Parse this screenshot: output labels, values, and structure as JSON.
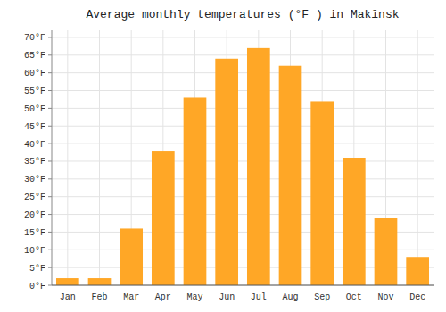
{
  "chart_data": {
    "type": "bar",
    "title": "Average monthly temperatures (°F ) in Makīnsk",
    "categories": [
      "Jan",
      "Feb",
      "Mar",
      "Apr",
      "May",
      "Jun",
      "Jul",
      "Aug",
      "Sep",
      "Oct",
      "Nov",
      "Dec"
    ],
    "values": [
      2,
      2,
      16,
      38,
      53,
      64,
      67,
      62,
      52,
      36,
      19,
      8
    ],
    "color": "#FFA726",
    "ylim": [
      0,
      72
    ],
    "yticks": [
      {
        "value": 0,
        "label": "0°F"
      },
      {
        "value": 5,
        "label": "5°F"
      },
      {
        "value": 10,
        "label": "10°F"
      },
      {
        "value": 15,
        "label": "15°F"
      },
      {
        "value": 20,
        "label": "20°F"
      },
      {
        "value": 25,
        "label": "25°F"
      },
      {
        "value": 30,
        "label": "30°F"
      },
      {
        "value": 35,
        "label": "35°F"
      },
      {
        "value": 40,
        "label": "40°F"
      },
      {
        "value": 45,
        "label": "45°F"
      },
      {
        "value": 50,
        "label": "50°F"
      },
      {
        "value": 55,
        "label": "55°F"
      },
      {
        "value": 60,
        "label": "60°F"
      },
      {
        "value": 65,
        "label": "65°F"
      },
      {
        "value": 70,
        "label": "70°F"
      }
    ],
    "grid": true
  }
}
